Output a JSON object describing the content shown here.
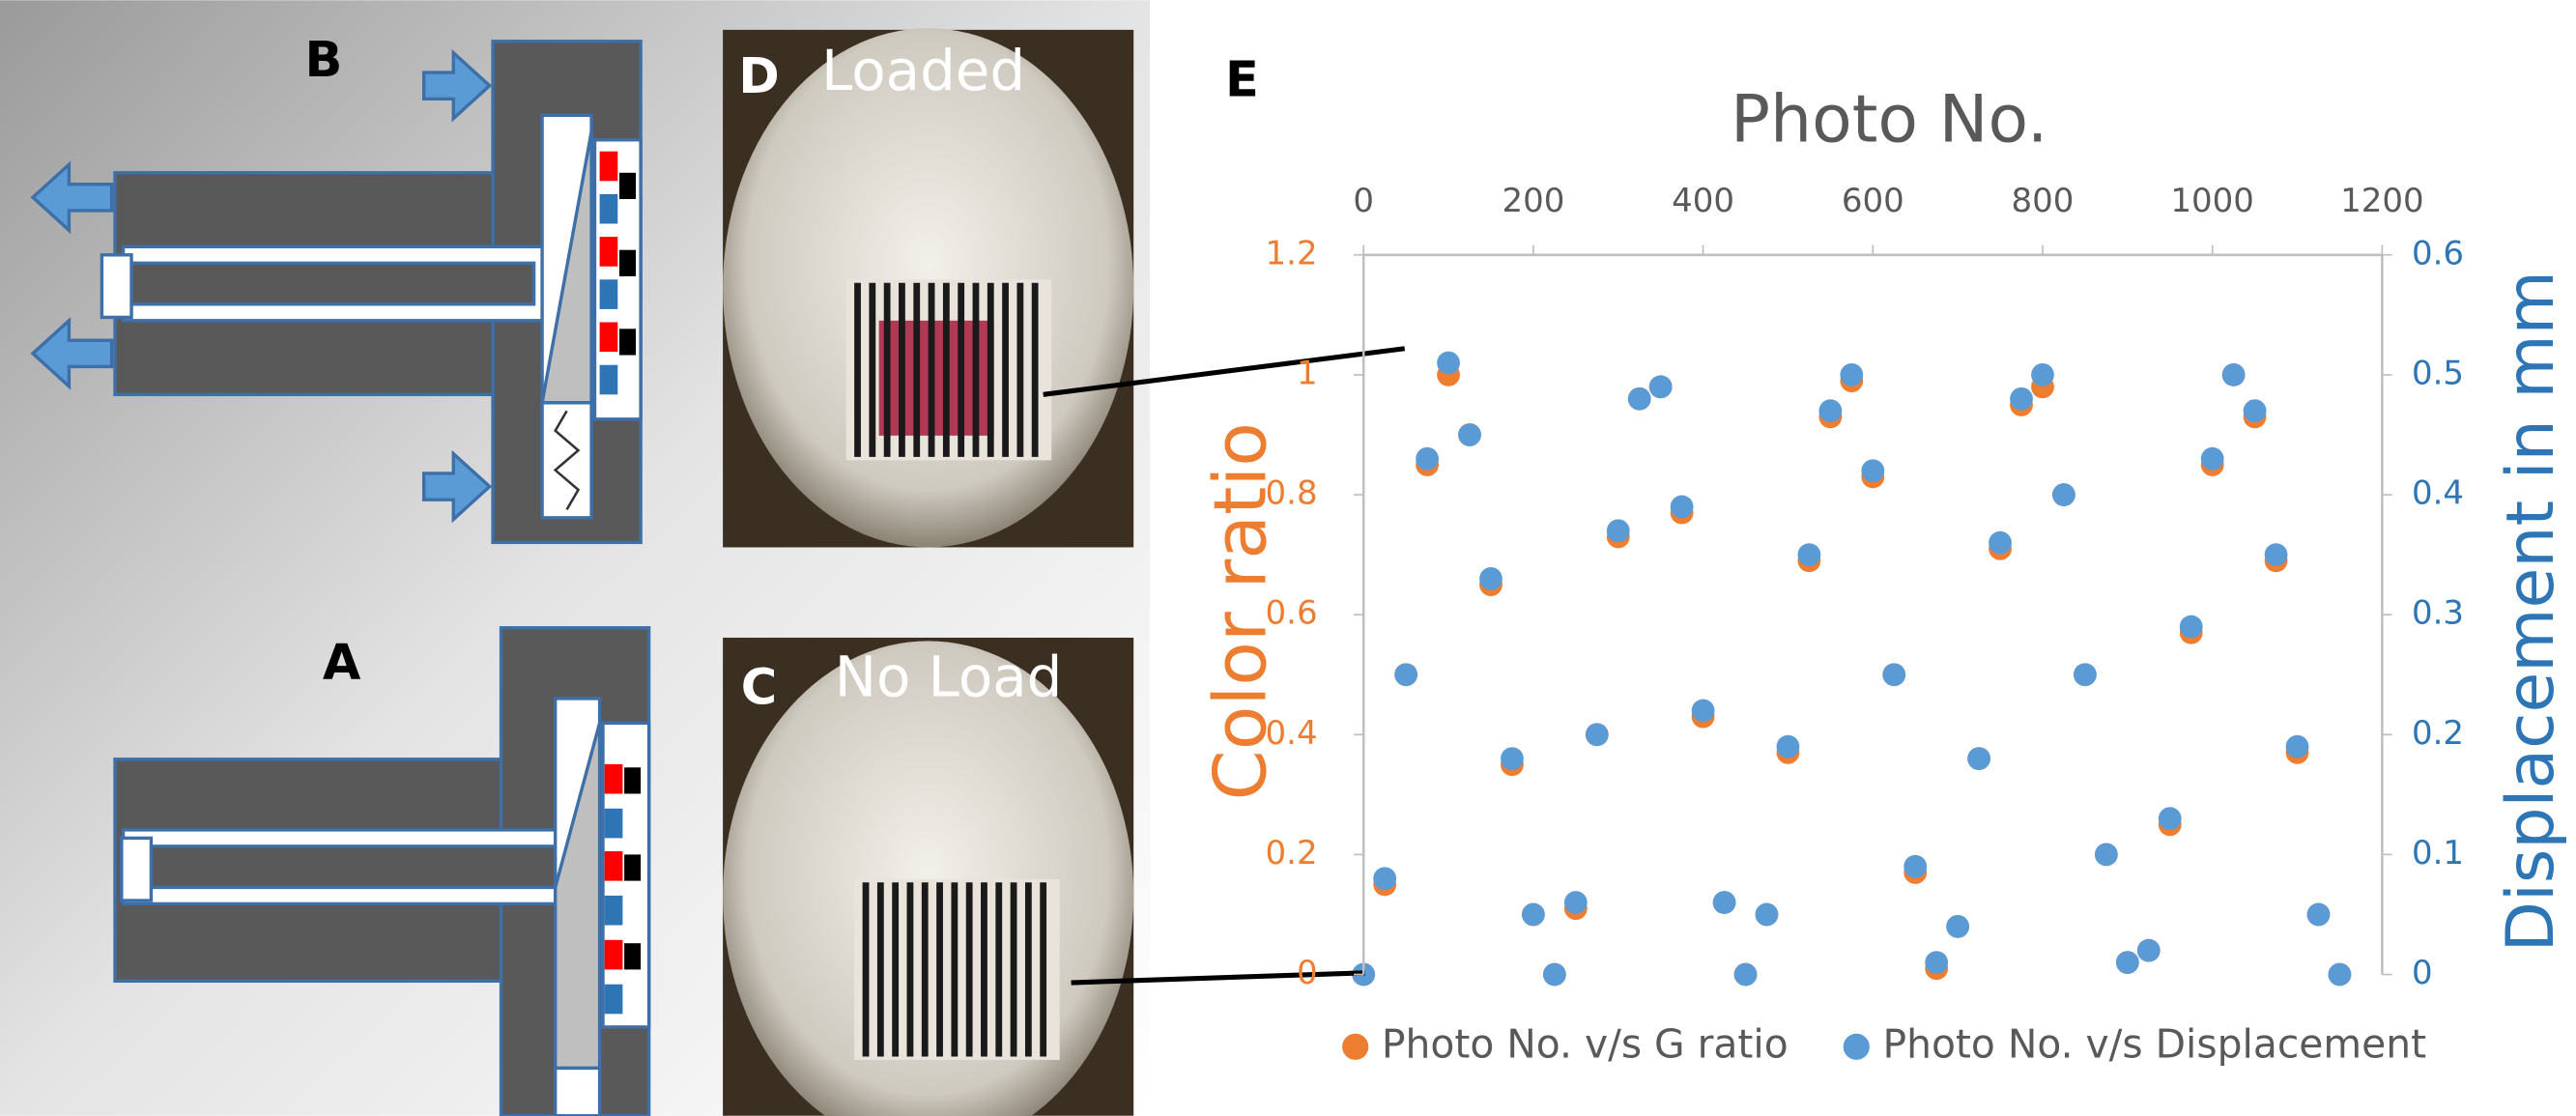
{
  "panels": {
    "b": {
      "label": "B"
    },
    "a": {
      "label": "A"
    },
    "d": {
      "label": "D",
      "caption": "Loaded"
    },
    "c": {
      "label": "C",
      "caption": "No Load"
    },
    "e": {
      "label": "E"
    }
  },
  "chart_data": {
    "type": "scatter",
    "title": "Photo No.",
    "y_label": "Color ratio",
    "y2_label": "Displacement in mm",
    "x": [
      0,
      25,
      50,
      75,
      100,
      125,
      150,
      175,
      200,
      225,
      250,
      275,
      300,
      325,
      350,
      375,
      400,
      425,
      450,
      475,
      500,
      525,
      550,
      575,
      600,
      625,
      650,
      675,
      700,
      725,
      750,
      775,
      800,
      825,
      850,
      875,
      900,
      925,
      950,
      975,
      1000,
      1025,
      1050,
      1075,
      1100,
      1125,
      1150
    ],
    "series": [
      {
        "name": "Photo No. v/s G ratio",
        "color": "#ed7d31",
        "axis": "y",
        "values": [
          0,
          0.15,
          0.5,
          0.85,
          1,
          0.9,
          0.65,
          0.35,
          0.1,
          0,
          0.11,
          0.4,
          0.73,
          0.96,
          0.98,
          0.77,
          0.43,
          0.12,
          0,
          0.1,
          0.37,
          0.69,
          0.93,
          0.99,
          0.83,
          0.5,
          0.17,
          0.01,
          0.08,
          0.36,
          0.71,
          0.95,
          0.98,
          0.8,
          0.5,
          0.2,
          0.02,
          0.04,
          0.25,
          0.57,
          0.85,
          1,
          0.93,
          0.69,
          0.37,
          0.1,
          0
        ]
      },
      {
        "name": "Photo No. v/s Displacement",
        "color": "#5b9bd5",
        "axis": "y2",
        "values": [
          0,
          0.08,
          0.25,
          0.43,
          0.51,
          0.45,
          0.33,
          0.18,
          0.05,
          0,
          0.06,
          0.2,
          0.37,
          0.48,
          0.49,
          0.39,
          0.22,
          0.06,
          0,
          0.05,
          0.19,
          0.35,
          0.47,
          0.5,
          0.42,
          0.25,
          0.09,
          0.01,
          0.04,
          0.18,
          0.36,
          0.48,
          0.5,
          0.4,
          0.25,
          0.1,
          0.01,
          0.02,
          0.13,
          0.29,
          0.43,
          0.5,
          0.47,
          0.35,
          0.19,
          0.05,
          0
        ]
      }
    ],
    "xlim": [
      0,
      1200
    ],
    "xticks": [
      0,
      200,
      400,
      600,
      800,
      1000,
      1200
    ],
    "ylim": [
      0,
      1.2
    ],
    "yticks": [
      0,
      0.2,
      0.4,
      0.6,
      0.8,
      1,
      1.2
    ],
    "y2lim": [
      0,
      0.6
    ],
    "y2ticks": [
      0,
      0.1,
      0.2,
      0.3,
      0.4,
      0.5,
      0.6
    ],
    "x_axis_position": "top",
    "legend": "bottom"
  }
}
